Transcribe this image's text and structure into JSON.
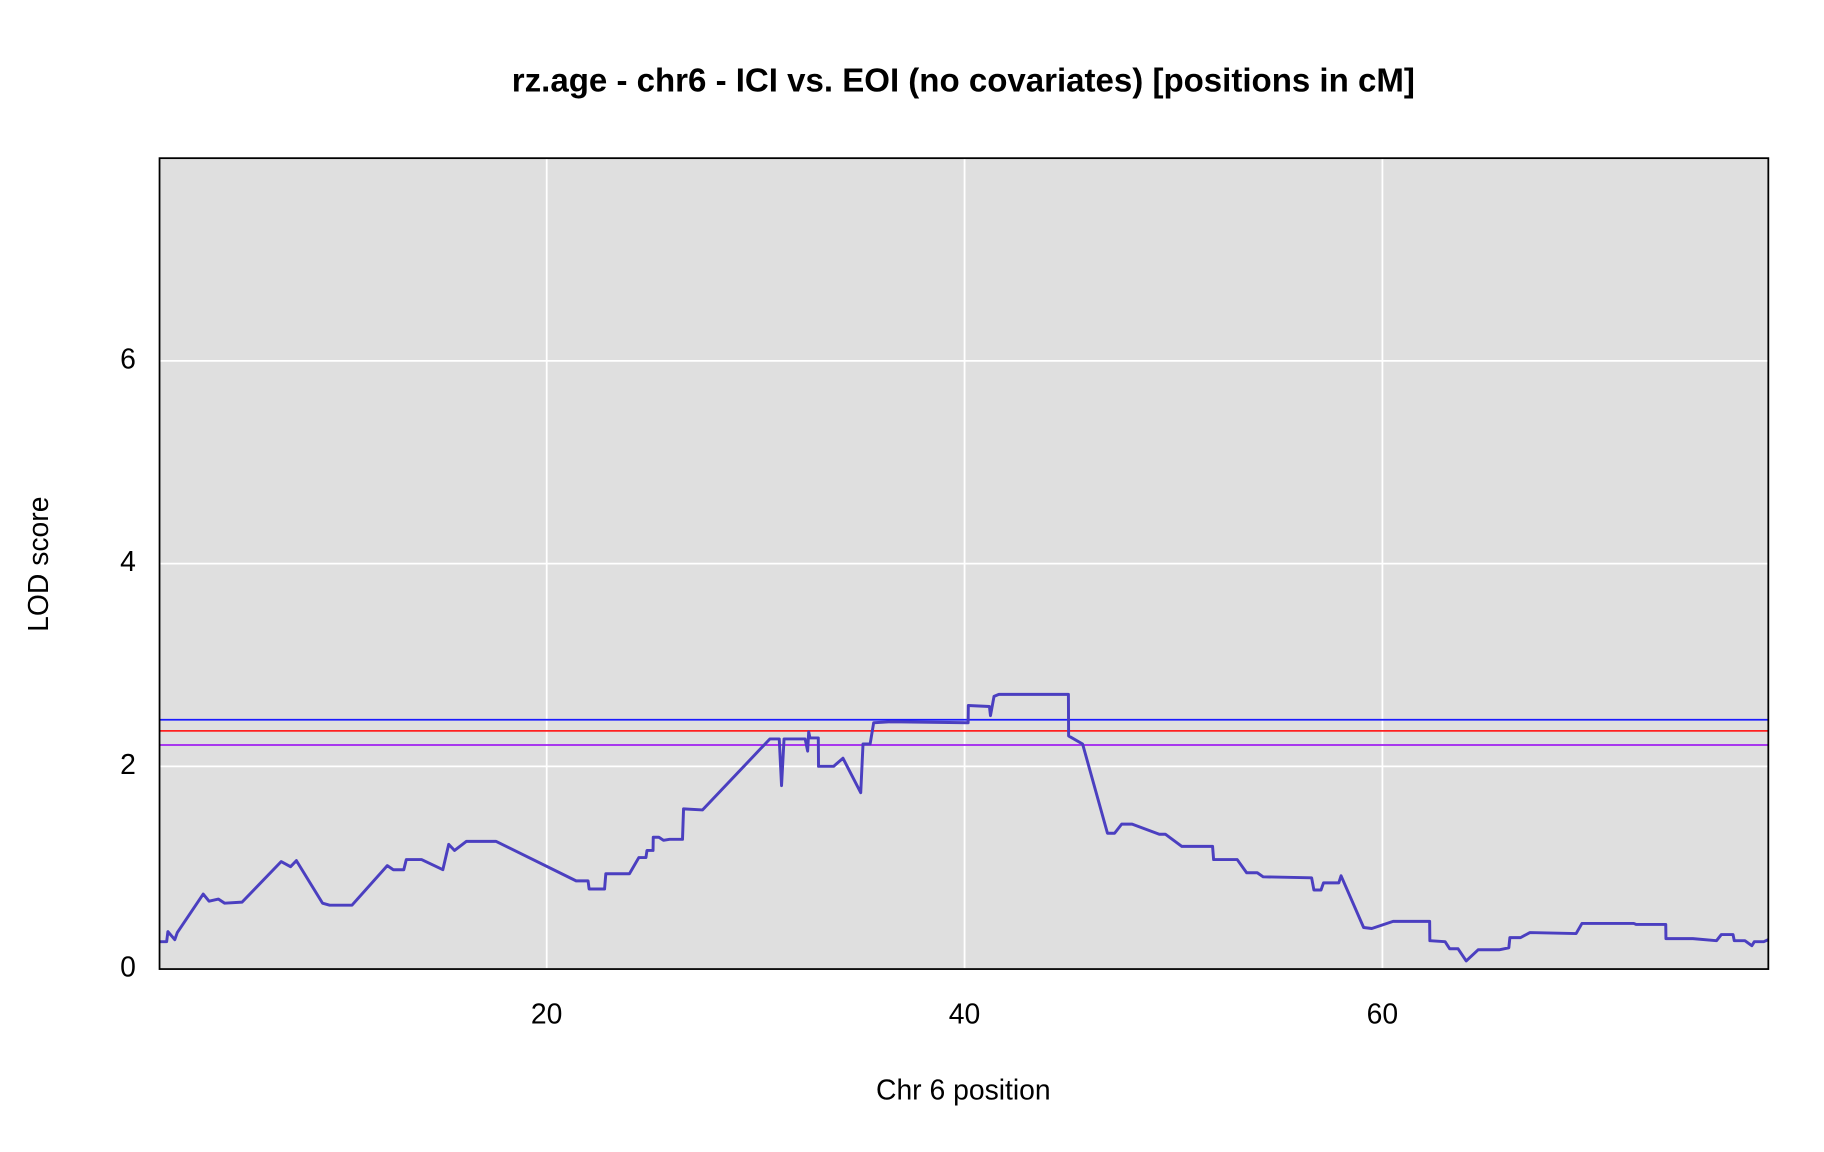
{
  "chart_data": {
    "type": "line",
    "title": "rz.age - chr6 - ICI vs. EOI (no covariates) [positions in cM]",
    "x_label": "Chr 6 position",
    "y_label": "LOD score",
    "xlim": [
      1.47,
      78.47
    ],
    "ylim": [
      0,
      8
    ],
    "xticks": [
      20,
      40,
      60
    ],
    "yticks": [
      0,
      2,
      4,
      6
    ],
    "grid": true,
    "hlines": [
      {
        "value": 2.46,
        "color": "#1a1aff"
      },
      {
        "value": 2.35,
        "color": "#ff2020"
      },
      {
        "value": 2.21,
        "color": "#a020f0"
      }
    ],
    "series": [
      {
        "color": "#4b3fc0",
        "x": [
          1.47,
          1.81,
          1.87,
          2.2,
          2.32,
          3.56,
          3.84,
          4.29,
          4.58,
          5.42,
          7.29,
          7.74,
          8.02,
          9.27,
          9.61,
          10.68,
          12.37,
          12.66,
          13.16,
          13.28,
          14.01,
          15.03,
          15.31,
          15.59,
          16.16,
          17.57,
          21.41,
          21.98,
          22.03,
          22.77,
          22.83,
          23.96,
          24.41,
          24.75,
          24.8,
          25.09,
          25.1,
          25.37,
          25.59,
          25.88,
          26.5,
          26.55,
          27.46,
          30.68,
          31.13,
          31.24,
          31.36,
          32.37,
          32.49,
          32.54,
          32.6,
          33.0,
          33.01,
          33.73,
          34.18,
          35.03,
          35.14,
          35.48,
          35.65,
          36.5,
          40.17,
          40.18,
          41.19,
          41.24,
          41.41,
          41.64,
          44.97,
          44.98,
          45.65,
          46.84,
          47.18,
          47.52,
          48.02,
          49.32,
          49.61,
          50.4,
          51.87,
          51.92,
          53.05,
          53.5,
          54.01,
          54.29,
          56.61,
          56.72,
          57.06,
          57.18,
          57.91,
          58.02,
          59.1,
          59.49,
          60.51,
          62.26,
          62.27,
          63.0,
          63.22,
          63.62,
          64.01,
          64.58,
          65.59,
          66.05,
          66.1,
          66.61,
          67.06,
          69.27,
          69.55,
          72.03,
          72.15,
          73.56,
          73.57,
          74.86,
          75.99,
          76.22,
          76.78,
          76.84,
          77.35,
          77.68,
          77.8,
          78.25,
          78.47
        ],
        "values": [
          0.27,
          0.27,
          0.37,
          0.29,
          0.36,
          0.74,
          0.67,
          0.69,
          0.65,
          0.66,
          1.06,
          1.01,
          1.07,
          0.65,
          0.63,
          0.63,
          1.02,
          0.98,
          0.98,
          1.08,
          1.08,
          0.98,
          1.23,
          1.17,
          1.26,
          1.26,
          0.87,
          0.87,
          0.79,
          0.79,
          0.94,
          0.94,
          1.1,
          1.1,
          1.17,
          1.17,
          1.3,
          1.3,
          1.27,
          1.28,
          1.28,
          1.58,
          1.57,
          2.27,
          2.27,
          1.81,
          2.27,
          2.27,
          2.15,
          2.34,
          2.28,
          2.28,
          2.0,
          2.0,
          2.08,
          1.74,
          2.22,
          2.22,
          2.43,
          2.44,
          2.43,
          2.6,
          2.59,
          2.5,
          2.69,
          2.71,
          2.71,
          2.3,
          2.22,
          1.34,
          1.34,
          1.43,
          1.43,
          1.33,
          1.33,
          1.21,
          1.21,
          1.08,
          1.08,
          0.95,
          0.95,
          0.91,
          0.9,
          0.78,
          0.78,
          0.85,
          0.85,
          0.92,
          0.41,
          0.4,
          0.47,
          0.47,
          0.28,
          0.27,
          0.2,
          0.2,
          0.08,
          0.19,
          0.19,
          0.21,
          0.31,
          0.31,
          0.36,
          0.35,
          0.45,
          0.45,
          0.44,
          0.44,
          0.3,
          0.3,
          0.28,
          0.34,
          0.34,
          0.28,
          0.28,
          0.23,
          0.27,
          0.27,
          0.29
        ]
      }
    ]
  }
}
